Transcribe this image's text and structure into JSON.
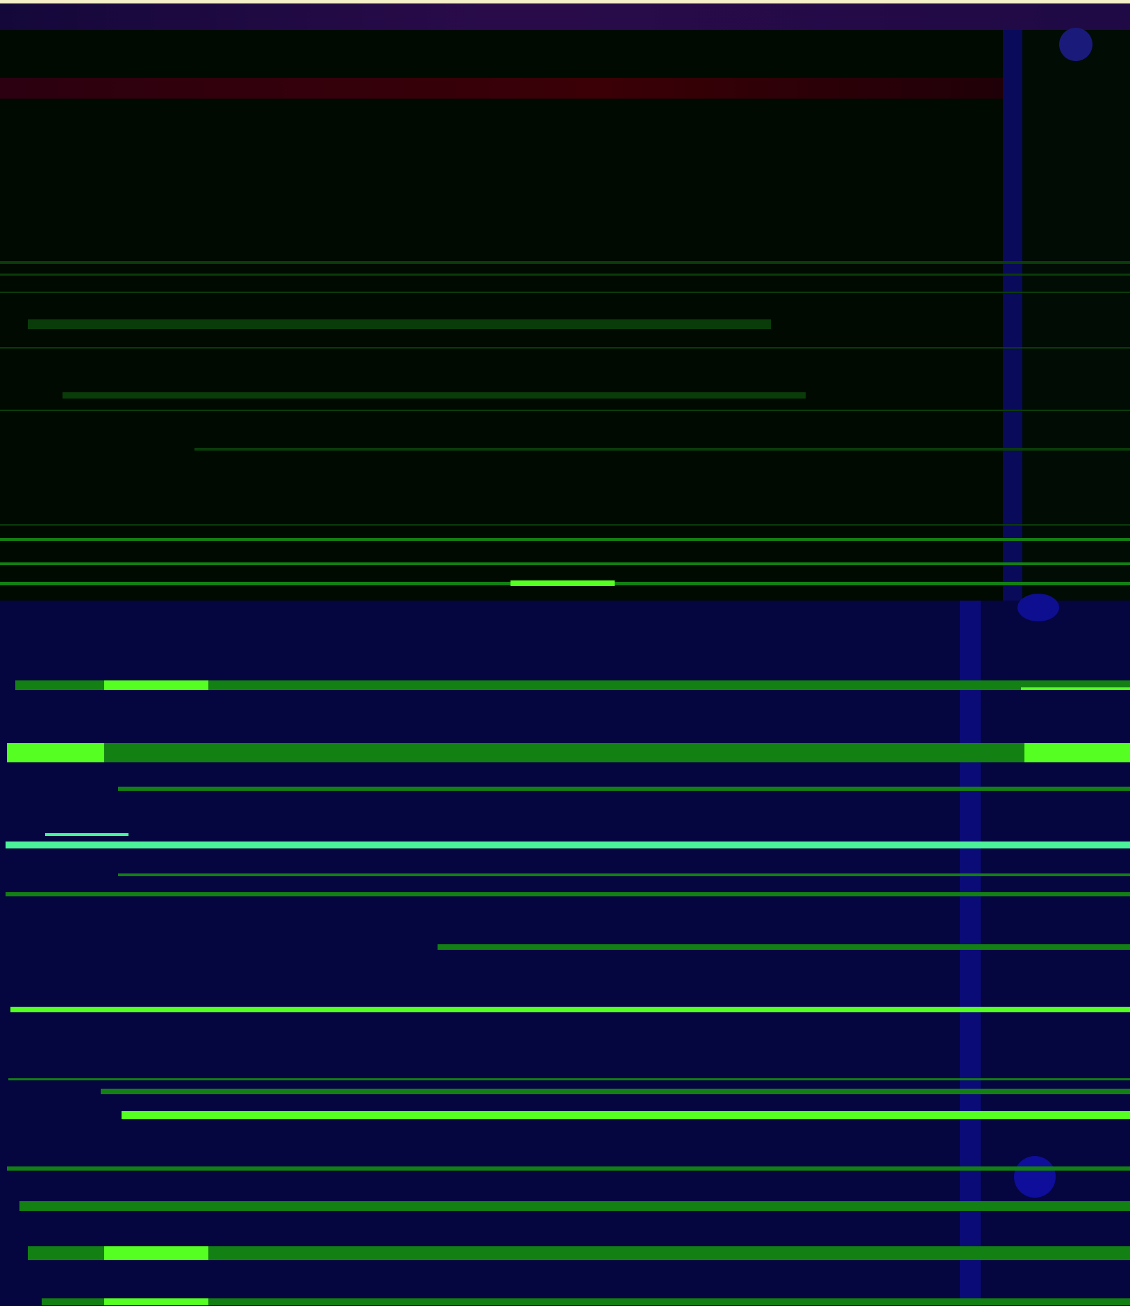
{
  "screen": {
    "description_text": "",
    "colors": {
      "upper_background": "#010a00",
      "lower_background": "#050540",
      "scrollbar": "#0b0b77",
      "accent_green": "#55ff22",
      "mid_green": "#138013",
      "dim_green": "#0a3c0a",
      "teal": "#4cf29a",
      "title_gradient_start": "#14083a",
      "menu_strip": "#3a0006"
    }
  },
  "upper_pane": {
    "label": ""
  },
  "lower_pane": {
    "label": ""
  }
}
